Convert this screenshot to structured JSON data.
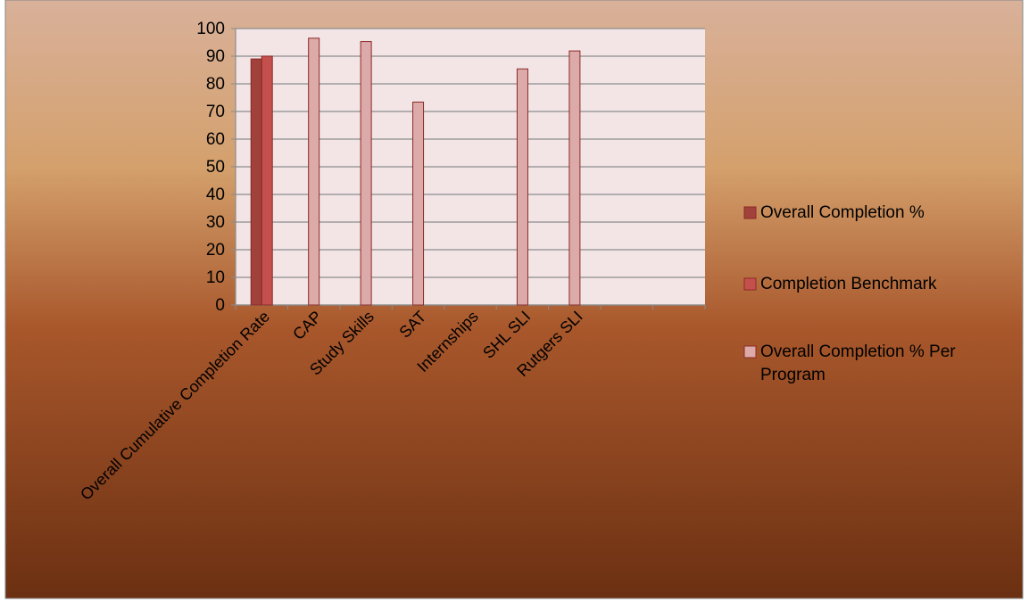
{
  "chart_data": {
    "type": "bar",
    "title": "",
    "xlabel": "",
    "ylabel": "",
    "ylim": [
      0,
      100
    ],
    "yticks": [
      0,
      10,
      20,
      30,
      40,
      50,
      60,
      70,
      80,
      90,
      100
    ],
    "grid": true,
    "legend_position": "right",
    "categories": [
      "Overall Cumulative Completion Rate",
      "CAP",
      "Study Skills",
      "SAT",
      "Internships",
      "SHL SLI",
      "Rutgers SLI",
      "",
      ""
    ],
    "series": [
      {
        "name": "Overall Completion  %",
        "color": "#a0413b",
        "values": [
          89,
          null,
          null,
          null,
          null,
          null,
          null,
          null,
          null
        ]
      },
      {
        "name": "Completion Benchmark",
        "color": "#c4504d",
        "values": [
          90,
          null,
          null,
          null,
          null,
          null,
          null,
          null,
          null
        ]
      },
      {
        "name": "Overall Completion % Per Program",
        "color": "#dcaaa9",
        "values": [
          null,
          96.5,
          95.3,
          73.4,
          null,
          85.4,
          91.9,
          null,
          null
        ]
      }
    ]
  }
}
